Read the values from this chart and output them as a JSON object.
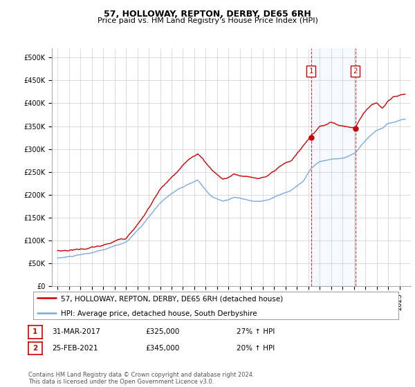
{
  "title": "57, HOLLOWAY, REPTON, DERBY, DE65 6RH",
  "subtitle": "Price paid vs. HM Land Registry's House Price Index (HPI)",
  "legend_line1": "57, HOLLOWAY, REPTON, DERBY, DE65 6RH (detached house)",
  "legend_line2": "HPI: Average price, detached house, South Derbyshire",
  "annotation1_label": "1",
  "annotation1_date": "31-MAR-2017",
  "annotation1_price": "£325,000",
  "annotation1_hpi": "27% ↑ HPI",
  "annotation1_year": 2017.25,
  "annotation2_label": "2",
  "annotation2_date": "25-FEB-2021",
  "annotation2_price": "£345,000",
  "annotation2_hpi": "20% ↑ HPI",
  "annotation2_year": 2021.12,
  "sale1_price": 325000,
  "sale2_price": 345000,
  "red_color": "#cc0000",
  "blue_color": "#7aaadd",
  "vline_color": "#cc0000",
  "shade_color": "#ddeeff",
  "background_color": "#ffffff",
  "grid_color": "#cccccc",
  "ylim": [
    0,
    520000
  ],
  "yticks": [
    0,
    50000,
    100000,
    150000,
    200000,
    250000,
    300000,
    350000,
    400000,
    450000,
    500000
  ],
  "ytick_labels": [
    "£0",
    "£50K",
    "£100K",
    "£150K",
    "£200K",
    "£250K",
    "£300K",
    "£350K",
    "£400K",
    "£450K",
    "£500K"
  ],
  "footer": "Contains HM Land Registry data © Crown copyright and database right 2024.\nThis data is licensed under the Open Government Licence v3.0.",
  "title_fontsize": 9,
  "subtitle_fontsize": 8,
  "axis_fontsize": 7.5,
  "legend_fontsize": 7.5,
  "tick_fontsize": 7
}
